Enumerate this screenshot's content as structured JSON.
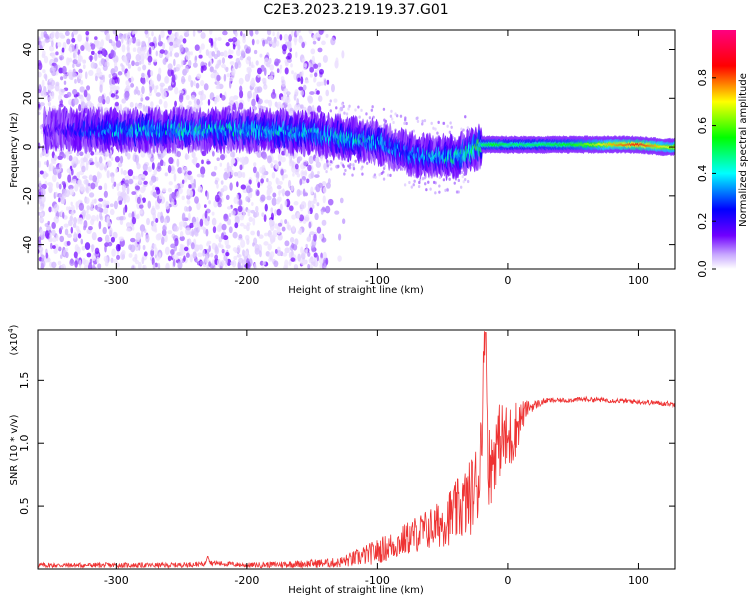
{
  "title": "C2E3.2023.219.19.37.G01",
  "chart_data": [
    {
      "type": "heatmap",
      "xlabel": "Height of straight line (km)",
      "ylabel": "Frequency (Hz)",
      "xlim": [
        -360,
        128
      ],
      "ylim": [
        -50,
        48
      ],
      "x_ticks": [
        -300,
        -200,
        -100,
        0,
        100
      ],
      "x_tick_labels": [
        "-300",
        "-200",
        "-100",
        "0",
        "100"
      ],
      "y_ticks": [
        -40,
        -20,
        0,
        20,
        40
      ],
      "y_tick_labels": [
        "-40",
        "-20",
        "0",
        "20",
        "40"
      ],
      "colorbar": {
        "label": "Normalized spectral amplitude",
        "range": [
          0,
          1
        ],
        "ticks": [
          0.0,
          0.2,
          0.4,
          0.6,
          0.8
        ],
        "tick_labels": [
          "0.0",
          "0.2",
          "0.4",
          "0.6",
          "0.8"
        ],
        "colormap": [
          "#ffffff",
          "#c8a8ff",
          "#7000ff",
          "#0000ff",
          "#00ffff",
          "#00ff00",
          "#ffff00",
          "#ff0000",
          "#ff0080"
        ]
      },
      "band": {
        "description_x": [
          -350,
          -300,
          -250,
          -200,
          -160,
          -130,
          -100,
          -80,
          -60,
          -40,
          -30,
          -20,
          -10,
          0,
          20,
          50,
          80,
          100,
          120
        ],
        "center_freq": [
          7,
          7,
          7,
          7,
          6,
          4,
          2,
          -2,
          -4,
          -4,
          -2,
          1,
          1,
          1,
          1,
          1,
          1,
          1,
          0
        ],
        "amplitude": [
          0.15,
          0.35,
          0.4,
          0.4,
          0.35,
          0.4,
          0.35,
          0.3,
          0.35,
          0.4,
          0.45,
          0.5,
          0.55,
          0.5,
          0.5,
          0.55,
          0.75,
          0.85,
          0.7
        ]
      },
      "grid": false
    },
    {
      "type": "line",
      "xlabel": "Height of straight line (km)",
      "ylabel": "SNR (10 * v/v)",
      "y_multiplier_label": "(x10",
      "y_multiplier_exp": "4",
      "y_multiplier_close": ")",
      "xlim": [
        -360,
        128
      ],
      "ylim": [
        0,
        1.9
      ],
      "x_ticks": [
        -300,
        -200,
        -100,
        0,
        100
      ],
      "x_tick_labels": [
        "-300",
        "-200",
        "-100",
        "0",
        "100"
      ],
      "y_ticks": [
        0.5,
        1.0,
        1.5
      ],
      "y_tick_labels": [
        "0.5",
        "1.0",
        "1.5"
      ],
      "series": [
        {
          "color": "#ee3333",
          "x": [
            -360,
            -340,
            -300,
            -260,
            -232,
            -230,
            -228,
            -200,
            -160,
            -130,
            -115,
            -100,
            -85,
            -70,
            -55,
            -40,
            -30,
            -22,
            -17,
            -15,
            -13,
            -10,
            -5,
            0,
            5,
            10,
            15,
            20,
            25,
            30,
            40,
            60,
            80,
            100,
            128
          ],
          "y": [
            0.03,
            0.03,
            0.03,
            0.03,
            0.04,
            0.12,
            0.05,
            0.03,
            0.04,
            0.05,
            0.09,
            0.14,
            0.2,
            0.28,
            0.34,
            0.45,
            0.55,
            0.72,
            1.88,
            0.85,
            0.8,
            0.95,
            1.05,
            1.0,
            1.1,
            1.2,
            1.28,
            1.3,
            1.32,
            1.34,
            1.34,
            1.35,
            1.34,
            1.33,
            1.31
          ],
          "noise": [
            0.02,
            0.02,
            0.02,
            0.02,
            0.02,
            0.02,
            0.02,
            0.02,
            0.03,
            0.04,
            0.07,
            0.1,
            0.12,
            0.15,
            0.18,
            0.25,
            0.3,
            0.35,
            0.3,
            0.35,
            0.3,
            0.3,
            0.3,
            0.3,
            0.25,
            0.15,
            0.06,
            0.04,
            0.03,
            0.02,
            0.02,
            0.02,
            0.02,
            0.02,
            0.02
          ]
        }
      ],
      "grid": false
    }
  ]
}
